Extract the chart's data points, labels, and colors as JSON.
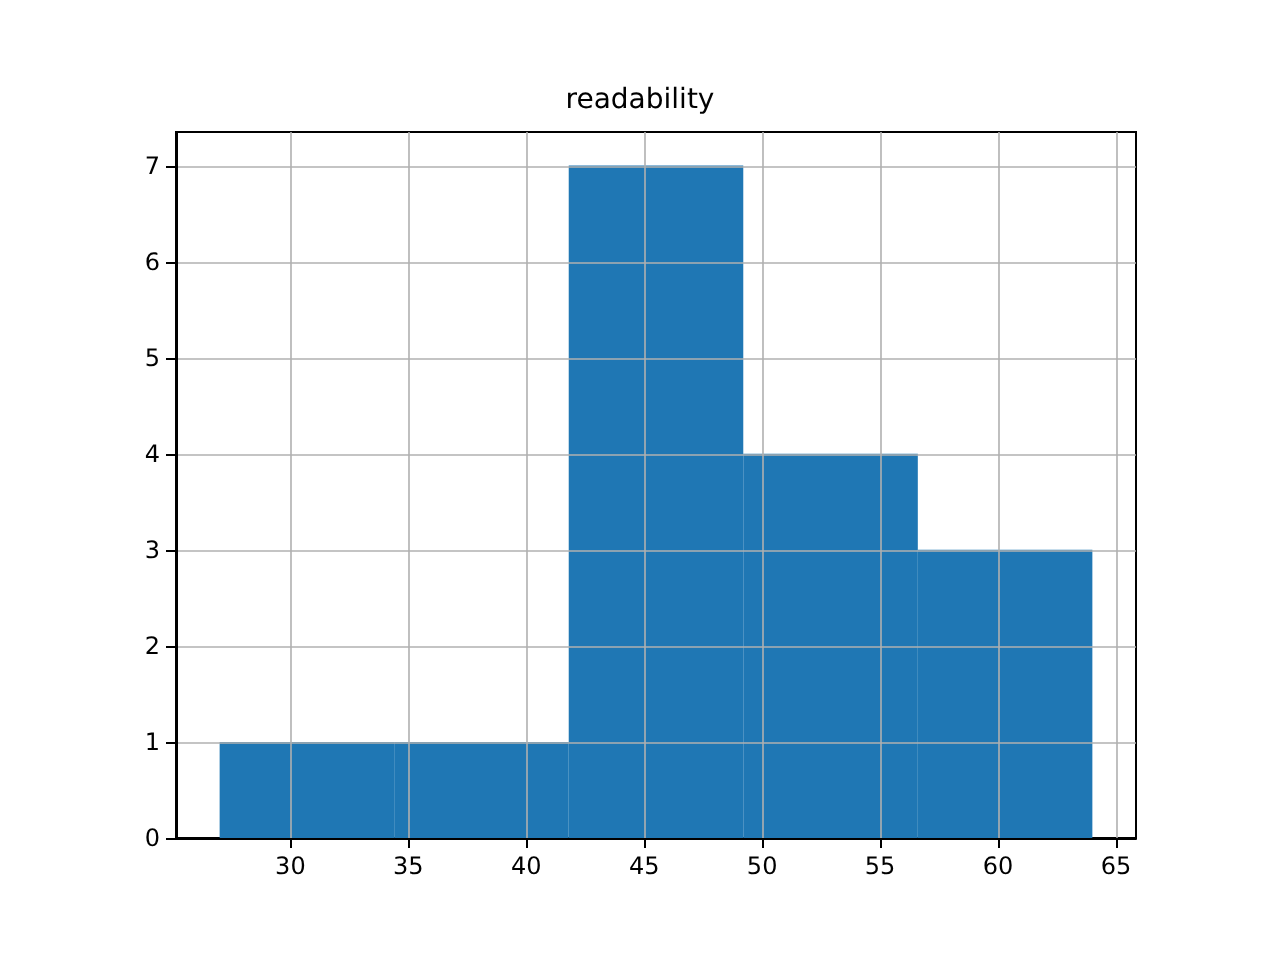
{
  "chart_data": {
    "type": "histogram",
    "title": "readability",
    "bins": [
      27,
      34.4,
      41.8,
      49.2,
      56.6,
      64
    ],
    "values": [
      1,
      1,
      7,
      4,
      3
    ],
    "color": "#1f77b4",
    "xlim": [
      25.15,
      65.85
    ],
    "xticks": [
      30,
      35,
      40,
      45,
      50,
      55,
      60,
      65
    ],
    "ylim": [
      0,
      7.35
    ],
    "yticks": [
      0,
      1,
      2,
      3,
      4,
      5,
      6,
      7
    ],
    "grid": true
  }
}
